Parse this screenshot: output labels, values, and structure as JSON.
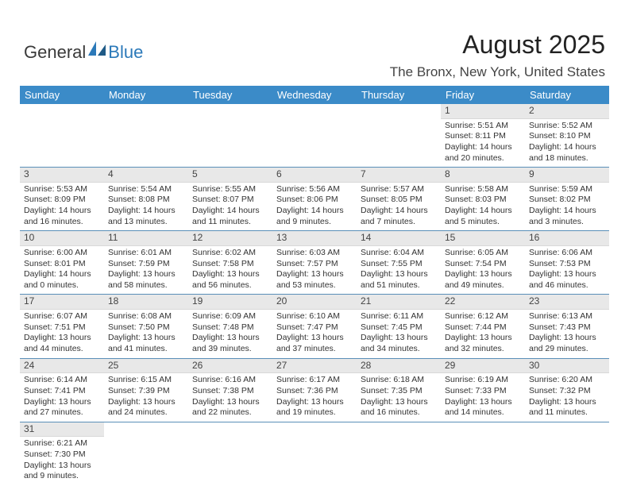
{
  "logo": {
    "part1": "General",
    "part2": "Blue",
    "shape_color": "#2b79b9"
  },
  "header": {
    "title": "August 2025",
    "location": "The Bronx, New York, United States",
    "title_fontsize": 32,
    "location_fontsize": 17
  },
  "colors": {
    "header_bg": "#3b8bc8",
    "header_text": "#ffffff",
    "daynum_bg": "#e8e8e8",
    "row_divider": "#5a8fb8",
    "body_text": "#333333"
  },
  "columns": [
    "Sunday",
    "Monday",
    "Tuesday",
    "Wednesday",
    "Thursday",
    "Friday",
    "Saturday"
  ],
  "weeks": [
    [
      null,
      null,
      null,
      null,
      null,
      {
        "n": "1",
        "sr": "Sunrise: 5:51 AM",
        "ss": "Sunset: 8:11 PM",
        "dl": "Daylight: 14 hours and 20 minutes."
      },
      {
        "n": "2",
        "sr": "Sunrise: 5:52 AM",
        "ss": "Sunset: 8:10 PM",
        "dl": "Daylight: 14 hours and 18 minutes."
      }
    ],
    [
      {
        "n": "3",
        "sr": "Sunrise: 5:53 AM",
        "ss": "Sunset: 8:09 PM",
        "dl": "Daylight: 14 hours and 16 minutes."
      },
      {
        "n": "4",
        "sr": "Sunrise: 5:54 AM",
        "ss": "Sunset: 8:08 PM",
        "dl": "Daylight: 14 hours and 13 minutes."
      },
      {
        "n": "5",
        "sr": "Sunrise: 5:55 AM",
        "ss": "Sunset: 8:07 PM",
        "dl": "Daylight: 14 hours and 11 minutes."
      },
      {
        "n": "6",
        "sr": "Sunrise: 5:56 AM",
        "ss": "Sunset: 8:06 PM",
        "dl": "Daylight: 14 hours and 9 minutes."
      },
      {
        "n": "7",
        "sr": "Sunrise: 5:57 AM",
        "ss": "Sunset: 8:05 PM",
        "dl": "Daylight: 14 hours and 7 minutes."
      },
      {
        "n": "8",
        "sr": "Sunrise: 5:58 AM",
        "ss": "Sunset: 8:03 PM",
        "dl": "Daylight: 14 hours and 5 minutes."
      },
      {
        "n": "9",
        "sr": "Sunrise: 5:59 AM",
        "ss": "Sunset: 8:02 PM",
        "dl": "Daylight: 14 hours and 3 minutes."
      }
    ],
    [
      {
        "n": "10",
        "sr": "Sunrise: 6:00 AM",
        "ss": "Sunset: 8:01 PM",
        "dl": "Daylight: 14 hours and 0 minutes."
      },
      {
        "n": "11",
        "sr": "Sunrise: 6:01 AM",
        "ss": "Sunset: 7:59 PM",
        "dl": "Daylight: 13 hours and 58 minutes."
      },
      {
        "n": "12",
        "sr": "Sunrise: 6:02 AM",
        "ss": "Sunset: 7:58 PM",
        "dl": "Daylight: 13 hours and 56 minutes."
      },
      {
        "n": "13",
        "sr": "Sunrise: 6:03 AM",
        "ss": "Sunset: 7:57 PM",
        "dl": "Daylight: 13 hours and 53 minutes."
      },
      {
        "n": "14",
        "sr": "Sunrise: 6:04 AM",
        "ss": "Sunset: 7:55 PM",
        "dl": "Daylight: 13 hours and 51 minutes."
      },
      {
        "n": "15",
        "sr": "Sunrise: 6:05 AM",
        "ss": "Sunset: 7:54 PM",
        "dl": "Daylight: 13 hours and 49 minutes."
      },
      {
        "n": "16",
        "sr": "Sunrise: 6:06 AM",
        "ss": "Sunset: 7:53 PM",
        "dl": "Daylight: 13 hours and 46 minutes."
      }
    ],
    [
      {
        "n": "17",
        "sr": "Sunrise: 6:07 AM",
        "ss": "Sunset: 7:51 PM",
        "dl": "Daylight: 13 hours and 44 minutes."
      },
      {
        "n": "18",
        "sr": "Sunrise: 6:08 AM",
        "ss": "Sunset: 7:50 PM",
        "dl": "Daylight: 13 hours and 41 minutes."
      },
      {
        "n": "19",
        "sr": "Sunrise: 6:09 AM",
        "ss": "Sunset: 7:48 PM",
        "dl": "Daylight: 13 hours and 39 minutes."
      },
      {
        "n": "20",
        "sr": "Sunrise: 6:10 AM",
        "ss": "Sunset: 7:47 PM",
        "dl": "Daylight: 13 hours and 37 minutes."
      },
      {
        "n": "21",
        "sr": "Sunrise: 6:11 AM",
        "ss": "Sunset: 7:45 PM",
        "dl": "Daylight: 13 hours and 34 minutes."
      },
      {
        "n": "22",
        "sr": "Sunrise: 6:12 AM",
        "ss": "Sunset: 7:44 PM",
        "dl": "Daylight: 13 hours and 32 minutes."
      },
      {
        "n": "23",
        "sr": "Sunrise: 6:13 AM",
        "ss": "Sunset: 7:43 PM",
        "dl": "Daylight: 13 hours and 29 minutes."
      }
    ],
    [
      {
        "n": "24",
        "sr": "Sunrise: 6:14 AM",
        "ss": "Sunset: 7:41 PM",
        "dl": "Daylight: 13 hours and 27 minutes."
      },
      {
        "n": "25",
        "sr": "Sunrise: 6:15 AM",
        "ss": "Sunset: 7:39 PM",
        "dl": "Daylight: 13 hours and 24 minutes."
      },
      {
        "n": "26",
        "sr": "Sunrise: 6:16 AM",
        "ss": "Sunset: 7:38 PM",
        "dl": "Daylight: 13 hours and 22 minutes."
      },
      {
        "n": "27",
        "sr": "Sunrise: 6:17 AM",
        "ss": "Sunset: 7:36 PM",
        "dl": "Daylight: 13 hours and 19 minutes."
      },
      {
        "n": "28",
        "sr": "Sunrise: 6:18 AM",
        "ss": "Sunset: 7:35 PM",
        "dl": "Daylight: 13 hours and 16 minutes."
      },
      {
        "n": "29",
        "sr": "Sunrise: 6:19 AM",
        "ss": "Sunset: 7:33 PM",
        "dl": "Daylight: 13 hours and 14 minutes."
      },
      {
        "n": "30",
        "sr": "Sunrise: 6:20 AM",
        "ss": "Sunset: 7:32 PM",
        "dl": "Daylight: 13 hours and 11 minutes."
      }
    ],
    [
      {
        "n": "31",
        "sr": "Sunrise: 6:21 AM",
        "ss": "Sunset: 7:30 PM",
        "dl": "Daylight: 13 hours and 9 minutes."
      },
      null,
      null,
      null,
      null,
      null,
      null
    ]
  ]
}
